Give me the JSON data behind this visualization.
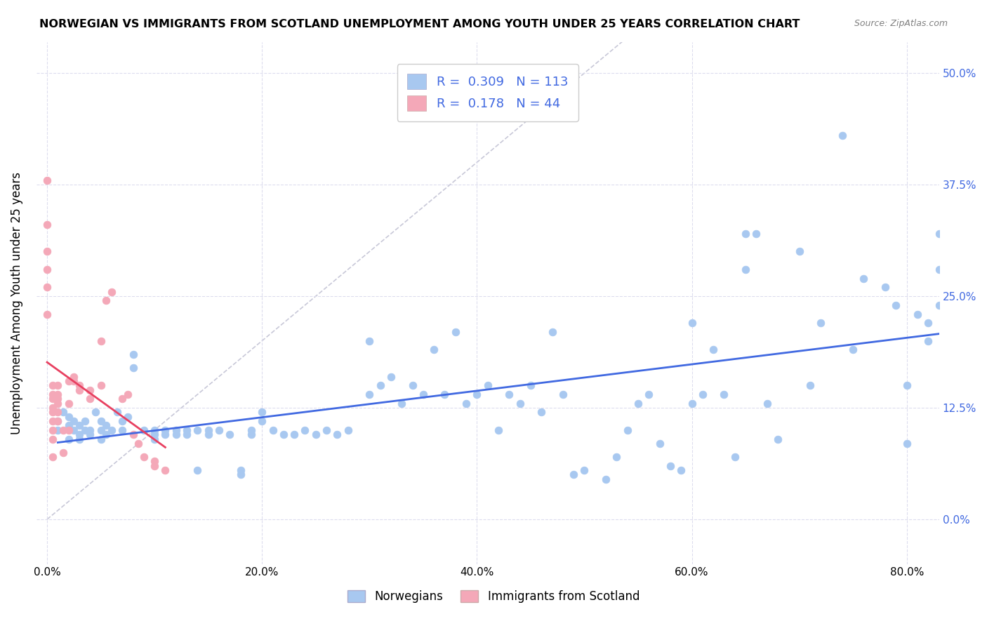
{
  "title": "NORWEGIAN VS IMMIGRANTS FROM SCOTLAND UNEMPLOYMENT AMONG YOUTH UNDER 25 YEARS CORRELATION CHART",
  "source": "Source: ZipAtlas.com",
  "ylabel": "Unemployment Among Youth under 25 years",
  "xlabel_ticks": [
    "0.0%",
    "20.0%",
    "40.0%",
    "60.0%",
    "80.0%"
  ],
  "xlabel_vals": [
    0.0,
    0.2,
    0.4,
    0.6,
    0.8
  ],
  "ylabel_ticks": [
    "0.0%",
    "12.5%",
    "25.0%",
    "37.5%",
    "50.0%"
  ],
  "ylabel_vals": [
    0.0,
    0.125,
    0.25,
    0.375,
    0.5
  ],
  "xlim": [
    -0.01,
    0.83
  ],
  "ylim": [
    -0.05,
    0.535
  ],
  "norwegian_color": "#a8c8f0",
  "scottish_color": "#f4a8b8",
  "trend_norwegian_color": "#4169e1",
  "trend_scottish_color": "#e84060",
  "diagonal_color": "#c8c8d8",
  "legend_R_norwegian": "0.309",
  "legend_N_norwegian": "113",
  "legend_R_scottish": "0.178",
  "legend_N_scottish": "44",
  "legend_color": "#4169e1",
  "norwegians_label": "Norwegians",
  "scottish_label": "Immigrants from Scotland",
  "norwegian_x": [
    0.01,
    0.01,
    0.015,
    0.02,
    0.02,
    0.02,
    0.025,
    0.025,
    0.03,
    0.03,
    0.03,
    0.035,
    0.035,
    0.04,
    0.04,
    0.045,
    0.05,
    0.05,
    0.05,
    0.055,
    0.055,
    0.06,
    0.065,
    0.07,
    0.07,
    0.075,
    0.08,
    0.08,
    0.09,
    0.1,
    0.1,
    0.1,
    0.11,
    0.11,
    0.12,
    0.12,
    0.13,
    0.13,
    0.14,
    0.14,
    0.15,
    0.15,
    0.16,
    0.17,
    0.18,
    0.18,
    0.19,
    0.19,
    0.2,
    0.2,
    0.21,
    0.22,
    0.23,
    0.24,
    0.25,
    0.26,
    0.27,
    0.28,
    0.3,
    0.3,
    0.31,
    0.32,
    0.33,
    0.34,
    0.35,
    0.36,
    0.37,
    0.38,
    0.39,
    0.4,
    0.41,
    0.42,
    0.43,
    0.44,
    0.45,
    0.46,
    0.47,
    0.48,
    0.49,
    0.5,
    0.52,
    0.53,
    0.54,
    0.55,
    0.56,
    0.57,
    0.58,
    0.59,
    0.6,
    0.61,
    0.62,
    0.63,
    0.64,
    0.65,
    0.66,
    0.67,
    0.68,
    0.7,
    0.71,
    0.72,
    0.74,
    0.75,
    0.76,
    0.78,
    0.79,
    0.8,
    0.8,
    0.81,
    0.82,
    0.82,
    0.83,
    0.83,
    0.83,
    0.6,
    0.65
  ],
  "norwegian_y": [
    0.1,
    0.11,
    0.12,
    0.105,
    0.09,
    0.115,
    0.1,
    0.11,
    0.09,
    0.095,
    0.105,
    0.1,
    0.11,
    0.095,
    0.1,
    0.12,
    0.09,
    0.1,
    0.11,
    0.095,
    0.105,
    0.1,
    0.12,
    0.1,
    0.11,
    0.115,
    0.185,
    0.17,
    0.1,
    0.09,
    0.095,
    0.1,
    0.095,
    0.1,
    0.1,
    0.095,
    0.1,
    0.095,
    0.055,
    0.1,
    0.1,
    0.095,
    0.1,
    0.095,
    0.05,
    0.055,
    0.1,
    0.095,
    0.11,
    0.12,
    0.1,
    0.095,
    0.095,
    0.1,
    0.095,
    0.1,
    0.095,
    0.1,
    0.2,
    0.14,
    0.15,
    0.16,
    0.13,
    0.15,
    0.14,
    0.19,
    0.14,
    0.21,
    0.13,
    0.14,
    0.15,
    0.1,
    0.14,
    0.13,
    0.15,
    0.12,
    0.21,
    0.14,
    0.05,
    0.055,
    0.045,
    0.07,
    0.1,
    0.13,
    0.14,
    0.085,
    0.06,
    0.055,
    0.22,
    0.14,
    0.19,
    0.14,
    0.07,
    0.32,
    0.32,
    0.13,
    0.09,
    0.3,
    0.15,
    0.22,
    0.43,
    0.19,
    0.27,
    0.26,
    0.24,
    0.085,
    0.15,
    0.23,
    0.22,
    0.2,
    0.32,
    0.28,
    0.24,
    0.13,
    0.28
  ],
  "scottish_x": [
    0.0,
    0.0,
    0.0,
    0.0,
    0.0,
    0.0,
    0.005,
    0.005,
    0.005,
    0.005,
    0.005,
    0.005,
    0.005,
    0.005,
    0.005,
    0.01,
    0.01,
    0.01,
    0.01,
    0.01,
    0.01,
    0.015,
    0.015,
    0.02,
    0.02,
    0.02,
    0.025,
    0.025,
    0.03,
    0.03,
    0.04,
    0.04,
    0.05,
    0.05,
    0.055,
    0.06,
    0.07,
    0.075,
    0.08,
    0.085,
    0.09,
    0.1,
    0.1,
    0.11
  ],
  "scottish_y": [
    0.38,
    0.33,
    0.3,
    0.28,
    0.26,
    0.23,
    0.15,
    0.14,
    0.135,
    0.125,
    0.12,
    0.11,
    0.1,
    0.09,
    0.07,
    0.15,
    0.14,
    0.135,
    0.13,
    0.12,
    0.11,
    0.1,
    0.075,
    0.155,
    0.13,
    0.1,
    0.16,
    0.155,
    0.15,
    0.145,
    0.145,
    0.135,
    0.2,
    0.15,
    0.245,
    0.255,
    0.135,
    0.14,
    0.095,
    0.085,
    0.07,
    0.065,
    0.06,
    0.055
  ]
}
